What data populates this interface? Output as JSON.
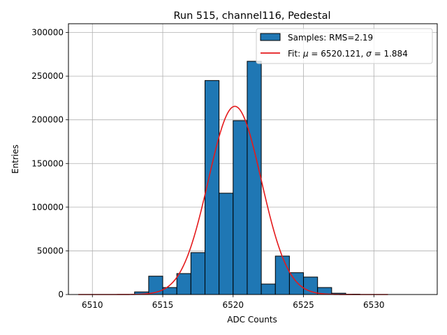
{
  "chart_data": {
    "type": "bar",
    "title": "Run 515, channel116, Pedestal",
    "xlabel": "ADC Counts",
    "ylabel": "Entries",
    "xlim": [
      6508.3,
      6534.5
    ],
    "ylim": [
      0,
      310000
    ],
    "xticks": [
      6510,
      6515,
      6520,
      6525,
      6530
    ],
    "yticks": [
      0,
      50000,
      100000,
      150000,
      200000,
      250000,
      300000
    ],
    "grid": true,
    "legend_position": "top-right",
    "bin_width": 1,
    "histogram": {
      "name": "Samples: RMS=2.19",
      "color": "#1f77b4",
      "edgecolor": "#000000",
      "bin_left_edges": [
        6513,
        6514,
        6515,
        6516,
        6517,
        6518,
        6519,
        6520,
        6521,
        6522,
        6523,
        6524,
        6525,
        6526,
        6527,
        6528,
        6529,
        6530,
        6531,
        6532
      ],
      "counts": [
        3000,
        21000,
        8000,
        24000,
        48000,
        245000,
        116000,
        199000,
        267000,
        12000,
        44000,
        25000,
        20000,
        8000,
        1500,
        400,
        0,
        0,
        0,
        0
      ]
    },
    "fit": {
      "label_prefix": "Fit: ",
      "mu_symbol": "μ",
      "mu": "6520.121",
      "sigma_symbol": "σ",
      "sigma": "1.884",
      "amplitude": 215500,
      "x_range": [
        6509,
        6531
      ],
      "color": "#e41a1c"
    }
  }
}
